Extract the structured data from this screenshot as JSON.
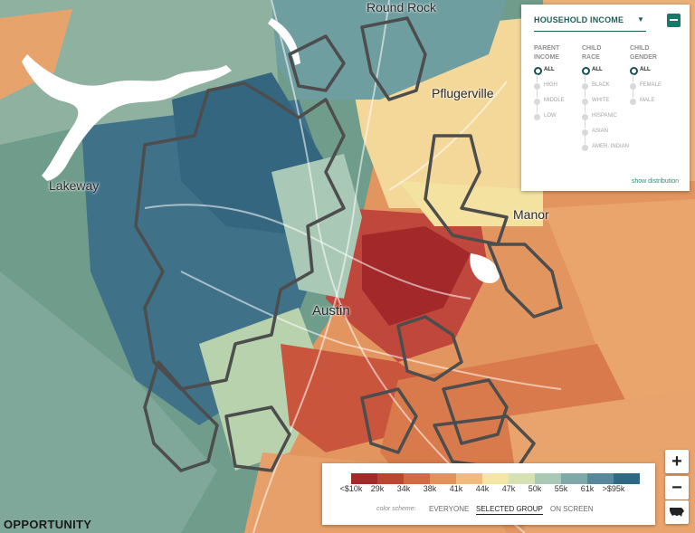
{
  "map": {
    "places": {
      "round_rock": "Round Rock",
      "pflugerville": "Pflugerville",
      "lakeway": "Lakeway",
      "manor": "Manor",
      "austin": "Austin"
    }
  },
  "filter_panel": {
    "title": "HOUSEHOLD INCOME",
    "groups": [
      {
        "header_line1": "PARENT",
        "header_line2": "INCOME",
        "options": [
          "ALL",
          "HIGH",
          "MIDDLE",
          "LOW"
        ],
        "selected": "ALL"
      },
      {
        "header_line1": "CHILD",
        "header_line2": "RACE",
        "options": [
          "ALL",
          "BLACK",
          "WHITE",
          "HISPANIC",
          "ASIAN",
          "AMER. INDIAN"
        ],
        "selected": "ALL"
      },
      {
        "header_line1": "CHILD",
        "header_line2": "GENDER",
        "options": [
          "ALL",
          "FEMALE",
          "MALE"
        ],
        "selected": "ALL"
      }
    ],
    "show_distribution": "show distribution"
  },
  "legend": {
    "colors": [
      "#a32a28",
      "#bd4631",
      "#d46a42",
      "#e39159",
      "#f0bb7c",
      "#f6e6a6",
      "#d6e2b4",
      "#a9c8b5",
      "#7fa9a9",
      "#56889a",
      "#2f6a84"
    ],
    "tick_labels": [
      "<$10k",
      "29k",
      "34k",
      "38k",
      "41k",
      "44k",
      "47k",
      "50k",
      "55k",
      "61k",
      ">$95k"
    ],
    "scheme_label": "color scheme:",
    "scheme_options": [
      "EVERYONE",
      "SELECTED GROUP",
      "ON SCREEN"
    ],
    "scheme_selected": "SELECTED GROUP"
  },
  "zoom": {
    "in_label": "+",
    "out_label": "−"
  },
  "brand": "OPPORTUNITY"
}
